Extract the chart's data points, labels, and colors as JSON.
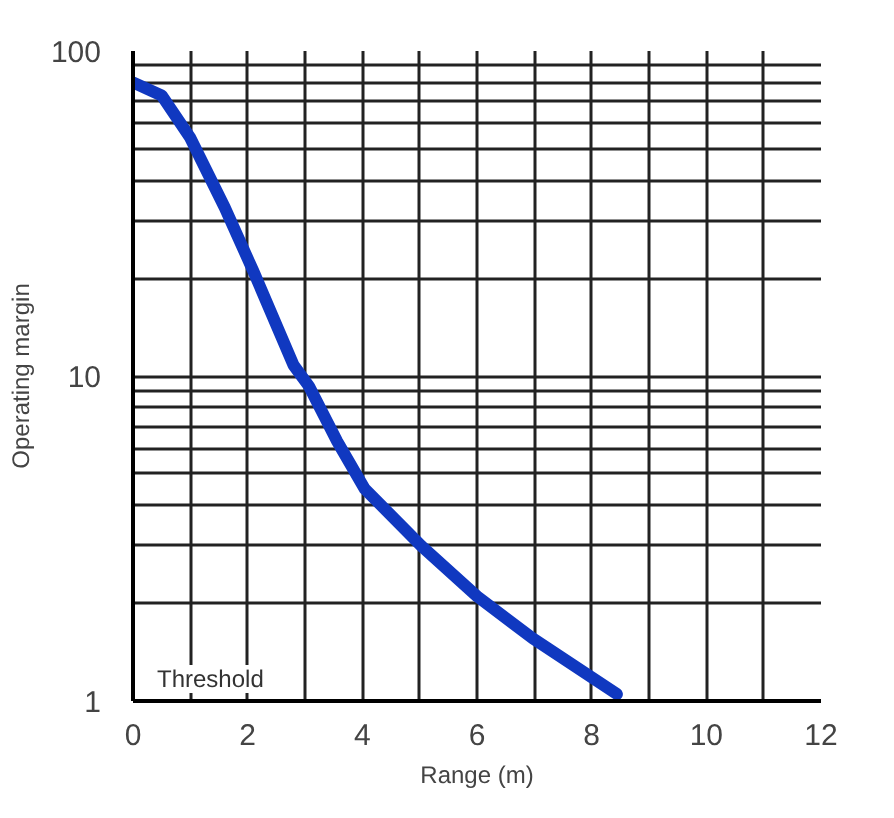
{
  "chart_data": {
    "type": "line",
    "xlabel": "Range (m)",
    "ylabel": "Operating margin",
    "log": "y",
    "xlim": [
      0,
      12
    ],
    "ylim": [
      1,
      100
    ],
    "xticks": [
      0,
      {
        "value": 1,
        "label": null
      },
      2,
      {
        "value": 3,
        "label": null
      },
      4,
      {
        "value": 5,
        "label": null
      },
      6,
      {
        "value": 7,
        "label": null
      },
      8,
      {
        "value": 9,
        "label": null
      },
      10,
      {
        "value": 11,
        "label": null
      },
      12
    ],
    "yticks": [
      1,
      {
        "value": 2,
        "label": null
      },
      {
        "value": 3,
        "label": null
      },
      {
        "value": 4,
        "label": null
      },
      {
        "value": 5,
        "label": null
      },
      {
        "value": 6,
        "label": null
      },
      {
        "value": 7,
        "label": null
      },
      {
        "value": 8,
        "label": null
      },
      {
        "value": 9,
        "label": null
      },
      10,
      {
        "value": 20,
        "label": null
      },
      {
        "value": 30,
        "label": null
      },
      {
        "value": 40,
        "label": null
      },
      {
        "value": 50,
        "label": null
      },
      {
        "value": 60,
        "label": null
      },
      {
        "value": 70,
        "label": null
      },
      {
        "value": 80,
        "label": null
      },
      {
        "value": 90,
        "label": null
      },
      100
    ],
    "grid": true,
    "line_style": "solid",
    "series": [
      {
        "color": "#1038c0",
        "x": [
          0,
          0.5,
          1.0,
          1.6,
          2.1,
          2.8,
          3.07,
          3.56,
          4.04,
          5.03,
          6.0,
          6.97,
          8.44
        ],
        "values": [
          80,
          73,
          54,
          33,
          21,
          10.8,
          9.3,
          6.3,
          4.5,
          3.0,
          2.1,
          1.56,
          1.05
        ]
      }
    ],
    "annotations": [
      "Threshold"
    ]
  }
}
